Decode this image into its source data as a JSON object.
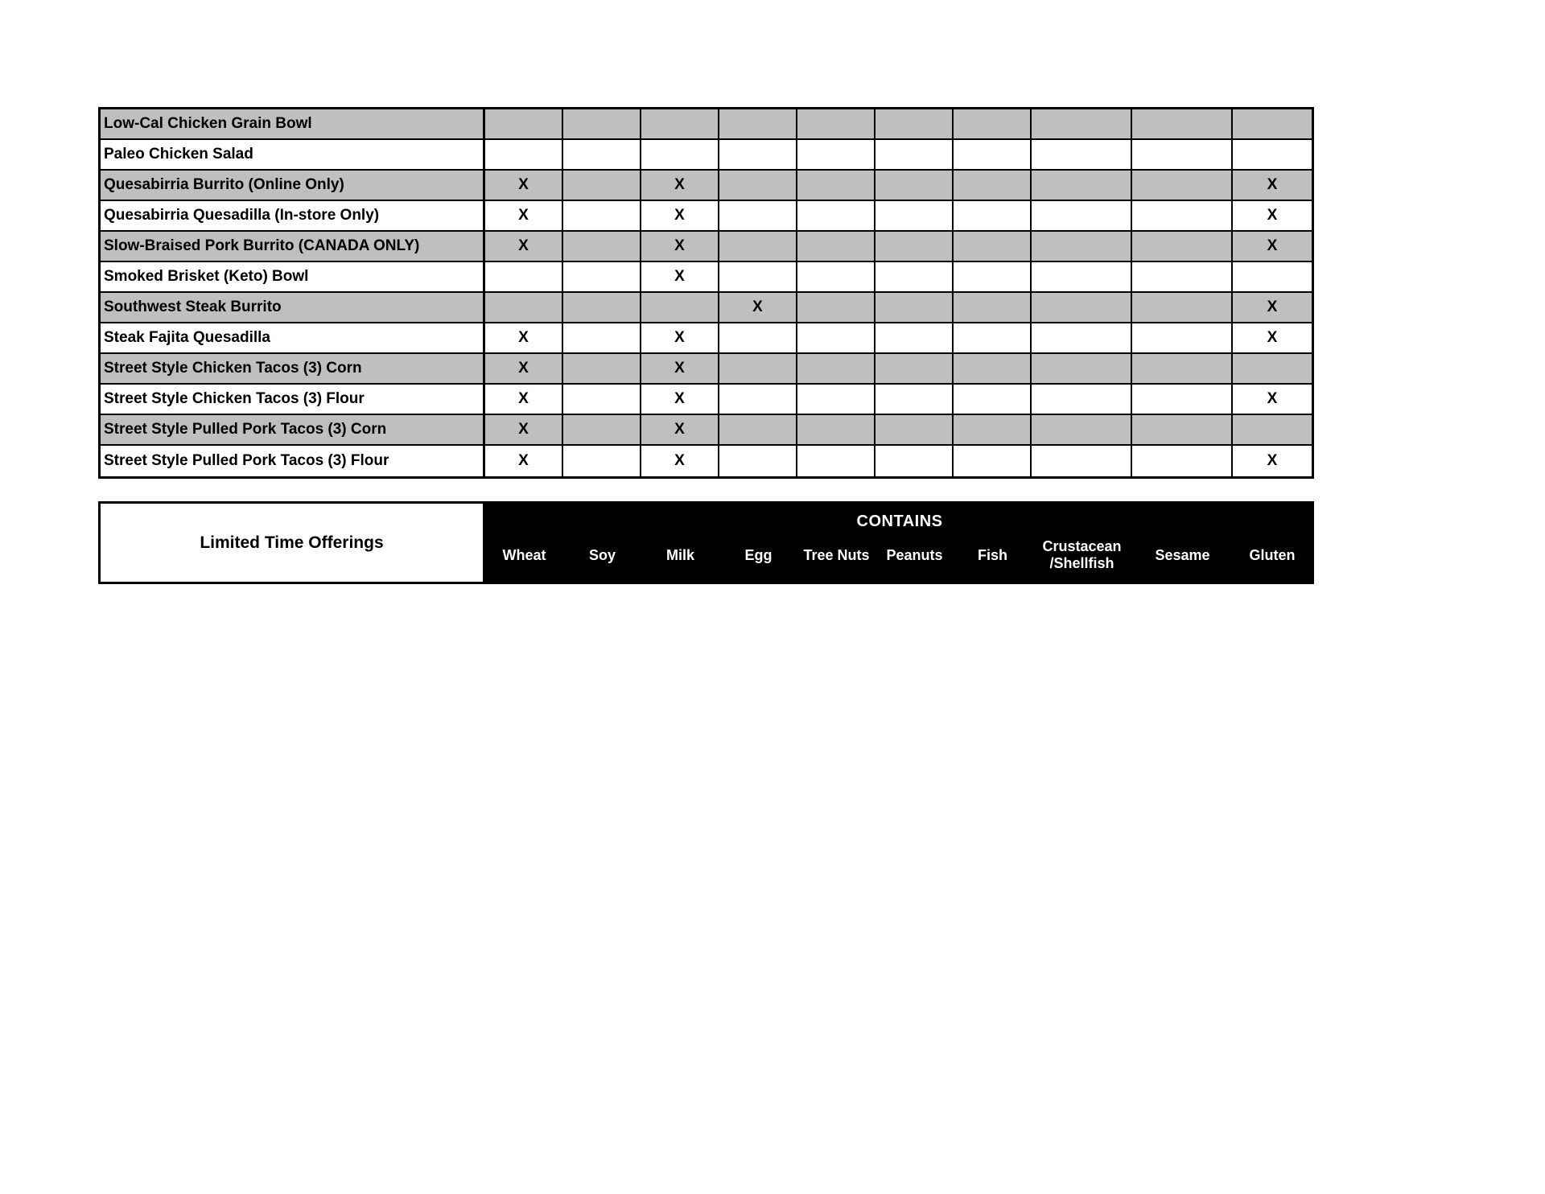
{
  "page": {
    "background": "#ffffff"
  },
  "allergen_matrix": {
    "columns": [
      "Wheat",
      "Soy",
      "Milk",
      "Egg",
      "Tree Nuts",
      "Peanuts",
      "Fish",
      "Crustacean\n/Shellfish",
      "Sesame",
      "Gluten"
    ],
    "rows": [
      {
        "label": "Low-Cal Chicken Grain Bowl",
        "marks": [
          "",
          "",
          "",
          "",
          "",
          "",
          "",
          "",
          "",
          ""
        ]
      },
      {
        "label": "Paleo Chicken Salad",
        "marks": [
          "",
          "",
          "",
          "",
          "",
          "",
          "",
          "",
          "",
          ""
        ]
      },
      {
        "label": "Quesabirria Burrito (Online Only)",
        "marks": [
          "X",
          "",
          "X",
          "",
          "",
          "",
          "",
          "",
          "",
          "X"
        ]
      },
      {
        "label": "Quesabirria Quesadilla (In-store Only)",
        "marks": [
          "X",
          "",
          "X",
          "",
          "",
          "",
          "",
          "",
          "",
          "X"
        ]
      },
      {
        "label": "Slow-Braised Pork Burrito (CANADA ONLY)",
        "marks": [
          "X",
          "",
          "X",
          "",
          "",
          "",
          "",
          "",
          "",
          "X"
        ]
      },
      {
        "label": "Smoked Brisket (Keto) Bowl",
        "marks": [
          "",
          "",
          "X",
          "",
          "",
          "",
          "",
          "",
          "",
          ""
        ]
      },
      {
        "label": "Southwest Steak Burrito",
        "marks": [
          "",
          "",
          "",
          "X",
          "",
          "",
          "",
          "",
          "",
          "X"
        ]
      },
      {
        "label": "Steak Fajita Quesadilla",
        "marks": [
          "X",
          "",
          "X",
          "",
          "",
          "",
          "",
          "",
          "",
          "X"
        ]
      },
      {
        "label": "Street Style Chicken Tacos (3) Corn",
        "marks": [
          "X",
          "",
          "X",
          "",
          "",
          "",
          "",
          "",
          "",
          ""
        ]
      },
      {
        "label": "Street Style Chicken Tacos (3) Flour",
        "marks": [
          "X",
          "",
          "X",
          "",
          "",
          "",
          "",
          "",
          "",
          "X"
        ]
      },
      {
        "label": "Street Style Pulled Pork Tacos (3) Corn",
        "marks": [
          "X",
          "",
          "X",
          "",
          "",
          "",
          "",
          "",
          "",
          ""
        ]
      },
      {
        "label": "Street Style Pulled Pork Tacos (3) Flour",
        "marks": [
          "X",
          "",
          "X",
          "",
          "",
          "",
          "",
          "",
          "",
          "X"
        ]
      }
    ],
    "row_stripe_color": "#bfbfbf",
    "row_alt_color": "#ffffff",
    "grid_line_color": "#000000",
    "header": {
      "category_label": "Limited Time Offerings",
      "contains_label": "CONTAINS",
      "header_bg": "#000000",
      "header_text_color": "#ffffff"
    }
  }
}
